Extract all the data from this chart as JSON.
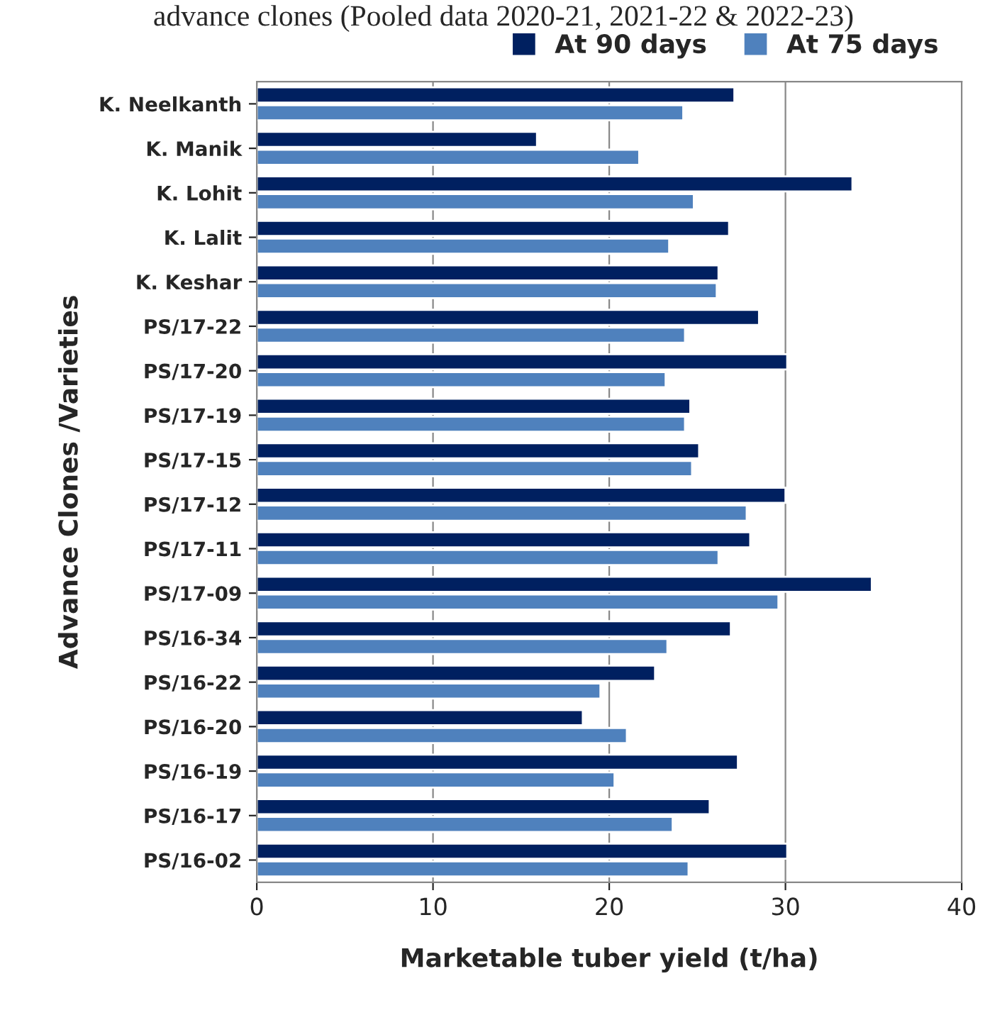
{
  "chart_data": {
    "type": "bar",
    "orientation": "horizontal",
    "title": "advance clones (Pooled data 2020-21, 2021-22 & 2022-23)",
    "xlabel": "Marketable tuber yield (t/ha)",
    "ylabel": "Advance Clones /Varieties",
    "categories": [
      "K. Neelkanth",
      "K. Manik",
      "K. Lohit",
      "K. Lalit",
      "K. Keshar",
      "PS/17-22",
      "PS/17-20",
      "PS/17-19",
      "PS/17-15",
      "PS/17-12",
      "PS/17-11",
      "PS/17-09",
      "PS/16-34",
      "PS/16-22",
      "PS/16-20",
      "PS/16-19",
      "PS/16-17",
      "PS/16-02"
    ],
    "series": [
      {
        "name": "At 90 days",
        "color": "#002060",
        "values": [
          27.1,
          15.9,
          33.8,
          26.8,
          26.2,
          28.5,
          30.1,
          24.6,
          25.1,
          30.0,
          28.0,
          34.9,
          26.9,
          22.6,
          18.5,
          27.3,
          25.7,
          30.1
        ]
      },
      {
        "name": "At 75 days",
        "color": "#4f81bd",
        "values": [
          24.2,
          21.7,
          24.8,
          23.4,
          26.1,
          24.3,
          23.2,
          24.3,
          24.7,
          27.8,
          26.2,
          29.6,
          23.3,
          19.5,
          21.0,
          20.3,
          23.6,
          24.5
        ]
      }
    ],
    "xlim": [
      0,
      40
    ],
    "xticks": [
      0,
      10,
      20,
      30,
      40
    ],
    "grid": "x",
    "legend": "top right"
  }
}
